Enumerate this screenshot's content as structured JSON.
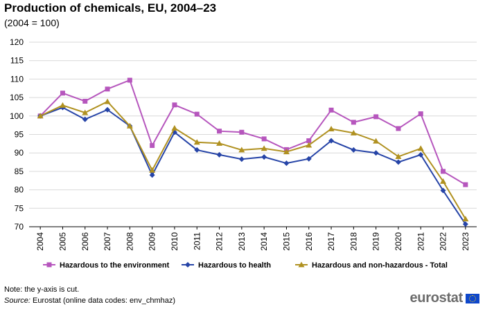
{
  "header": {
    "title": "Production of chemicals, EU, 2004–23",
    "subtitle": "(2004 = 100)"
  },
  "footer": {
    "note": "Note: the y-axis is cut.",
    "source_label": "Source:",
    "source_text": " Eurostat (online data codes: env_chmhaz)",
    "logo_text": "eurostat"
  },
  "chart_data": {
    "type": "line",
    "title": "Production of chemicals, EU, 2004–23",
    "subtitle": "(2004 = 100)",
    "x": [
      "2004",
      "2005",
      "2006",
      "2007",
      "2008",
      "2009",
      "2010",
      "2011",
      "2012",
      "2013",
      "2014",
      "2015",
      "2016",
      "2017",
      "2018",
      "2019",
      "2020",
      "2021",
      "2022",
      "2023"
    ],
    "ylim": [
      70,
      120
    ],
    "yticks": [
      70,
      75,
      80,
      85,
      90,
      95,
      100,
      105,
      110,
      115,
      120
    ],
    "grid": true,
    "legend_position": "bottom",
    "series": [
      {
        "name": "Hazardous to the environment",
        "color": "#b656bd",
        "marker": "square",
        "values": [
          100.0,
          106.2,
          104.0,
          107.3,
          109.7,
          92.0,
          103.0,
          100.5,
          95.9,
          95.6,
          93.8,
          90.9,
          93.3,
          101.6,
          98.3,
          99.8,
          96.6,
          100.6,
          85.0,
          81.4
        ]
      },
      {
        "name": "Hazardous to health",
        "color": "#2644a7",
        "marker": "diamond",
        "values": [
          100.0,
          102.3,
          99.1,
          101.7,
          97.3,
          84.0,
          95.6,
          90.8,
          89.5,
          88.3,
          88.9,
          87.2,
          88.4,
          93.3,
          90.8,
          90.0,
          87.5,
          89.5,
          79.8,
          70.7
        ]
      },
      {
        "name": "Hazardous and non-hazardous - Total",
        "color": "#b09120",
        "marker": "triangle",
        "values": [
          100.0,
          102.9,
          100.9,
          103.9,
          97.3,
          85.3,
          96.7,
          92.9,
          92.6,
          90.8,
          91.2,
          90.3,
          92.1,
          96.5,
          95.4,
          93.2,
          89.0,
          91.2,
          82.3,
          72.1
        ]
      }
    ]
  }
}
